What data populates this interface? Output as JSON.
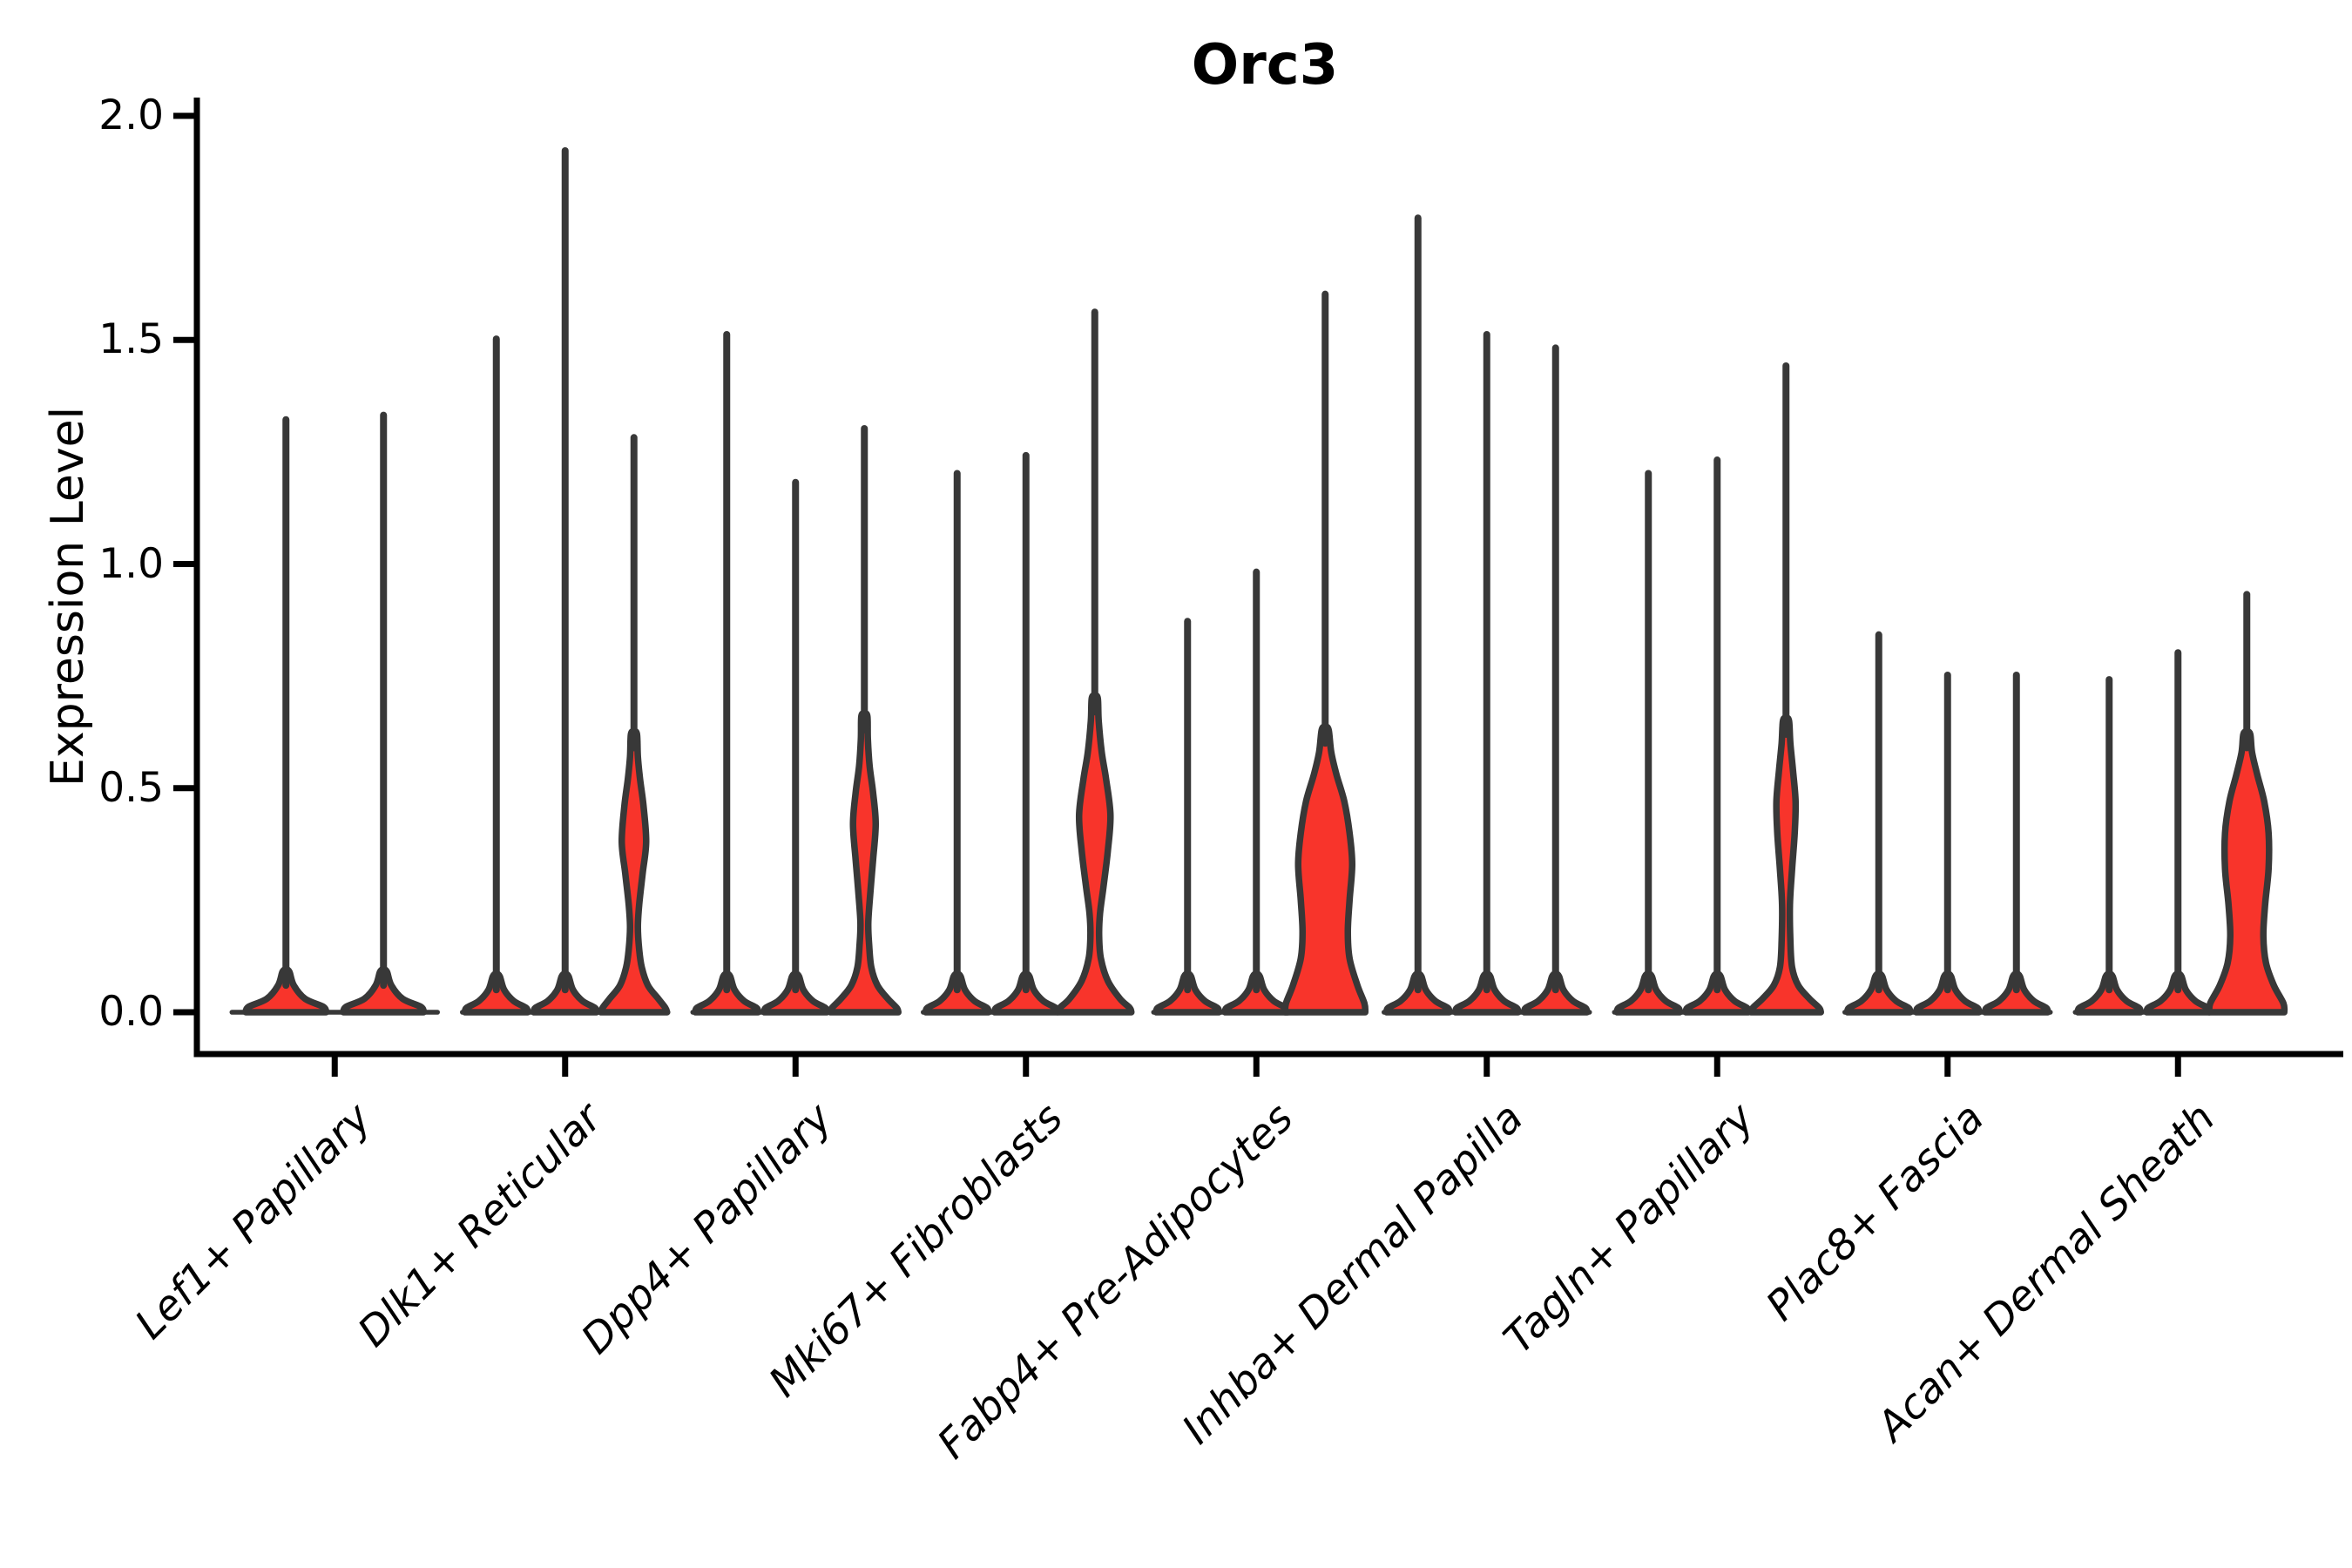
{
  "title": "Orc3",
  "axes": {
    "ylabel": "Expression Level",
    "ytick_labels": [
      "0.0",
      "0.5",
      "1.0",
      "1.5",
      "2.0"
    ],
    "xtick_labels": [
      "Lef1+ Papillary",
      "Dlk1+ Reticular",
      "Dpp4+ Papillary",
      "Mki67+ Fibroblasts",
      "Fabp4+ Pre-Adipocytes",
      "Inhba+ Dermal Papilla",
      "Tagln+ Papillary",
      "Plac8+ Fascia",
      "Acan+ Dermal Sheath"
    ]
  },
  "chart_data": {
    "type": "violin",
    "title": "Orc3",
    "ylabel": "Expression Level",
    "ylim": [
      0,
      2.0
    ],
    "yticks": [
      0.0,
      0.5,
      1.0,
      1.5,
      2.0
    ],
    "legend": "none",
    "grid": false,
    "colors": {
      "fill": "#F8342B",
      "edge": "#383838",
      "axis": "#000000",
      "text": "#000000"
    },
    "description": "Violin plot of Orc3 expression per fibroblast cluster; each cluster contains 2-3 sample violins. Most violins are near-zero spikes; 'max' is the top of each expression spike. 'profile' gives [expression_value, half_width_px] density outlines for violins with visible red mass near zero.",
    "categories": [
      "Lef1+ Papillary",
      "Dlk1+ Reticular",
      "Dpp4+ Papillary",
      "Mki67+ Fibroblasts",
      "Fabp4+ Pre-Adipocytes",
      "Inhba+ Dermal Papilla",
      "Tagln+ Papillary",
      "Plac8+ Fascia",
      "Acan+ Dermal Sheath"
    ],
    "groups": [
      {
        "label": "Lef1+ Papillary",
        "violins": [
          {
            "max": 1.33
          },
          {
            "max": 1.34
          }
        ]
      },
      {
        "label": "Dlk1+ Reticular",
        "violins": [
          {
            "max": 1.51
          },
          {
            "max": 1.93
          },
          {
            "max": 1.29,
            "profile": [
              [
                0,
                38
              ],
              [
                0.01,
                36
              ],
              [
                0.03,
                28
              ],
              [
                0.06,
                16
              ],
              [
                0.1,
                9
              ],
              [
                0.14,
                6
              ],
              [
                0.19,
                4.5
              ],
              [
                0.24,
                6
              ],
              [
                0.31,
                10
              ],
              [
                0.38,
                14
              ],
              [
                0.46,
                11
              ],
              [
                0.52,
                7
              ],
              [
                0.57,
                4.5
              ],
              [
                0.62,
                3.5
              ]
            ]
          }
        ]
      },
      {
        "label": "Dpp4+ Papillary",
        "violins": [
          {
            "max": 1.52
          },
          {
            "max": 1.19
          },
          {
            "max": 1.31,
            "profile": [
              [
                0,
                39
              ],
              [
                0.01,
                37
              ],
              [
                0.03,
                27
              ],
              [
                0.06,
                15
              ],
              [
                0.1,
                8
              ],
              [
                0.15,
                5.5
              ],
              [
                0.2,
                4.5
              ],
              [
                0.27,
                7
              ],
              [
                0.34,
                10
              ],
              [
                0.42,
                13
              ],
              [
                0.49,
                10
              ],
              [
                0.55,
                6
              ],
              [
                0.61,
                4
              ],
              [
                0.66,
                3.5
              ]
            ]
          }
        ]
      },
      {
        "label": "Mki67+ Fibroblasts",
        "violins": [
          {
            "max": 1.21
          },
          {
            "max": 1.25
          },
          {
            "max": 1.57,
            "profile": [
              [
                0,
                42
              ],
              [
                0.01,
                40
              ],
              [
                0.03,
                29
              ],
              [
                0.07,
                15
              ],
              [
                0.12,
                7
              ],
              [
                0.17,
                5
              ],
              [
                0.22,
                6
              ],
              [
                0.28,
                10
              ],
              [
                0.36,
                15
              ],
              [
                0.44,
                18
              ],
              [
                0.52,
                13
              ],
              [
                0.58,
                8
              ],
              [
                0.65,
                4.5
              ],
              [
                0.7,
                3.5
              ]
            ]
          }
        ]
      },
      {
        "label": "Fabp4+ Pre-Adipocytes",
        "violins": [
          {
            "max": 0.88
          },
          {
            "max": 0.99
          },
          {
            "max": 1.61,
            "profile": [
              [
                0,
                46
              ],
              [
                0.02,
                45
              ],
              [
                0.06,
                37
              ],
              [
                0.12,
                28
              ],
              [
                0.18,
                26
              ],
              [
                0.25,
                28
              ],
              [
                0.33,
                31
              ],
              [
                0.4,
                28
              ],
              [
                0.47,
                22
              ],
              [
                0.53,
                13
              ],
              [
                0.58,
                7
              ],
              [
                0.63,
                4
              ]
            ]
          }
        ]
      },
      {
        "label": "Inhba+ Dermal Papilla",
        "violins": [
          {
            "max": 1.78
          },
          {
            "max": 1.52
          },
          {
            "max": 1.49
          }
        ]
      },
      {
        "label": "Tagln+ Papillary",
        "violins": [
          {
            "max": 1.21
          },
          {
            "max": 1.24
          },
          {
            "max": 1.45,
            "profile": [
              [
                0,
                40
              ],
              [
                0.01,
                38
              ],
              [
                0.03,
                27
              ],
              [
                0.06,
                14
              ],
              [
                0.1,
                7
              ],
              [
                0.16,
                5
              ],
              [
                0.24,
                4.5
              ],
              [
                0.32,
                7
              ],
              [
                0.4,
                10
              ],
              [
                0.47,
                11
              ],
              [
                0.54,
                8
              ],
              [
                0.6,
                5
              ],
              [
                0.65,
                3.5
              ]
            ]
          }
        ]
      },
      {
        "label": "Plac8+ Fascia",
        "violins": [
          {
            "max": 0.85
          },
          {
            "max": 0.76
          },
          {
            "max": 0.76
          }
        ]
      },
      {
        "label": "Acan+ Dermal Sheath",
        "violins": [
          {
            "max": 0.75
          },
          {
            "max": 0.81
          },
          {
            "max": 0.94,
            "profile": [
              [
                0,
                43
              ],
              [
                0.02,
                42
              ],
              [
                0.06,
                31
              ],
              [
                0.11,
                22
              ],
              [
                0.17,
                19
              ],
              [
                0.24,
                21
              ],
              [
                0.32,
                25
              ],
              [
                0.4,
                25
              ],
              [
                0.47,
                20
              ],
              [
                0.53,
                12
              ],
              [
                0.58,
                6
              ],
              [
                0.62,
                4
              ]
            ]
          }
        ]
      }
    ]
  }
}
